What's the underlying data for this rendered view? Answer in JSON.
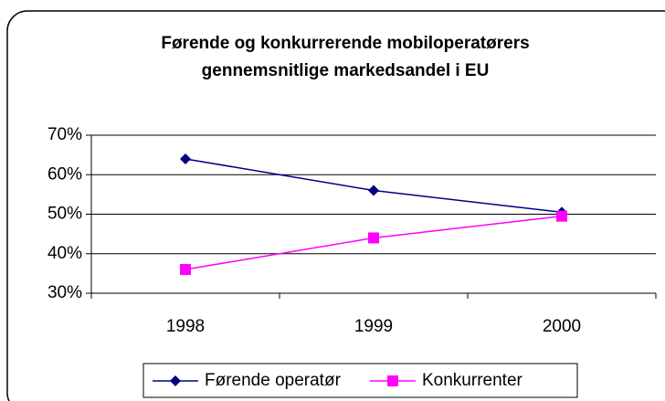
{
  "chart_data": {
    "type": "line",
    "title": [
      "Førende og konkurrerende mobiloperatørers",
      "gennemsnitlige markedsandel i EU"
    ],
    "categories": [
      "1998",
      "1999",
      "2000"
    ],
    "series": [
      {
        "name": "Førende operatør",
        "color": "#000080",
        "marker": "diamond",
        "values": [
          64,
          56,
          50.5
        ]
      },
      {
        "name": "Konkurrenter",
        "color": "#ff00ff",
        "marker": "square",
        "values": [
          36,
          44,
          49.5
        ]
      }
    ],
    "ylim": [
      30,
      70
    ],
    "yticks": [
      {
        "value": 30,
        "label": "30%"
      },
      {
        "value": 40,
        "label": "40%"
      },
      {
        "value": 50,
        "label": "50%"
      },
      {
        "value": 60,
        "label": "60%"
      },
      {
        "value": 70,
        "label": "70%"
      }
    ],
    "grid": true,
    "legend": "bottom"
  }
}
